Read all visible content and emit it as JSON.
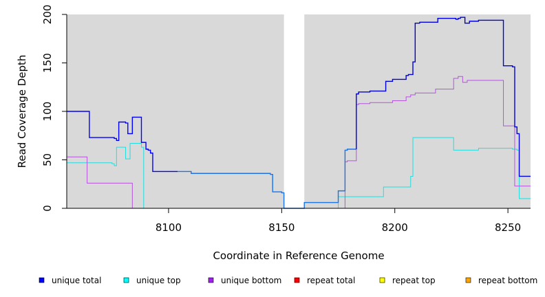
{
  "chart_data": {
    "type": "line",
    "title": "",
    "xlabel": "Coordinate in Reference Genome",
    "ylabel": "Read Coverage Depth",
    "xlim": [
      8055,
      8260
    ],
    "ylim": [
      0,
      200
    ],
    "x_ticks": [
      8100,
      8150,
      8200,
      8250
    ],
    "y_ticks": [
      0,
      50,
      100,
      150,
      200
    ],
    "grid": false,
    "background": "#d9d9d9",
    "gap_regions": [
      [
        8151,
        8160
      ]
    ],
    "legend_position": "bottom",
    "series": [
      {
        "name": "unique total",
        "color": "#0000ff",
        "points": [
          [
            8055,
            100
          ],
          [
            8065,
            100
          ],
          [
            8065,
            73
          ],
          [
            8076,
            73
          ],
          [
            8076,
            72
          ],
          [
            8077,
            72
          ],
          [
            8077,
            70
          ],
          [
            8078,
            70
          ],
          [
            8078,
            89
          ],
          [
            8081,
            89
          ],
          [
            8081,
            88
          ],
          [
            8082,
            88
          ],
          [
            8082,
            77
          ],
          [
            8084,
            77
          ],
          [
            8084,
            94
          ],
          [
            8088,
            94
          ],
          [
            8088,
            68
          ],
          [
            8090,
            68
          ],
          [
            8090,
            61
          ],
          [
            8091,
            61
          ],
          [
            8091,
            60
          ],
          [
            8092,
            60
          ],
          [
            8092,
            57
          ],
          [
            8093,
            57
          ],
          [
            8093,
            38
          ],
          [
            8104,
            38
          ],
          [
            8104,
            38
          ]
        ]
      },
      {
        "name": "unique total",
        "color": "#1a73e8",
        "points": [
          [
            8104,
            38
          ],
          [
            8110,
            38
          ],
          [
            8110,
            36
          ],
          [
            8145,
            36
          ],
          [
            8145,
            35
          ],
          [
            8146,
            35
          ],
          [
            8146,
            17
          ],
          [
            8150,
            17
          ],
          [
            8150,
            16
          ],
          [
            8151,
            16
          ],
          [
            8151,
            0
          ],
          [
            8160,
            0
          ],
          [
            8160,
            6
          ],
          [
            8175,
            6
          ],
          [
            8175,
            18
          ],
          [
            8178,
            18
          ],
          [
            8178,
            60
          ],
          [
            8179,
            60
          ],
          [
            8179,
            61
          ],
          [
            8183,
            61
          ]
        ]
      },
      {
        "name": "unique total",
        "color": "#0000dd",
        "points": [
          [
            8183,
            61
          ],
          [
            8183,
            118
          ],
          [
            8184,
            118
          ],
          [
            8184,
            120
          ],
          [
            8189,
            120
          ],
          [
            8189,
            121
          ],
          [
            8196,
            121
          ],
          [
            8196,
            131
          ],
          [
            8199,
            131
          ],
          [
            8199,
            133
          ],
          [
            8205,
            133
          ],
          [
            8205,
            137
          ],
          [
            8206,
            137
          ],
          [
            8206,
            138
          ],
          [
            8208,
            138
          ],
          [
            8208,
            151
          ],
          [
            8209,
            151
          ],
          [
            8209,
            191
          ],
          [
            8211,
            191
          ],
          [
            8211,
            192
          ],
          [
            8219,
            192
          ],
          [
            8219,
            196
          ],
          [
            8227,
            196
          ],
          [
            8227,
            195
          ],
          [
            8228,
            195
          ],
          [
            8228,
            196
          ],
          [
            8229,
            196
          ],
          [
            8229,
            197
          ],
          [
            8231,
            197
          ],
          [
            8231,
            191
          ],
          [
            8233,
            191
          ],
          [
            8233,
            193
          ],
          [
            8237,
            193
          ],
          [
            8237,
            194
          ],
          [
            8248,
            194
          ],
          [
            8248,
            147
          ],
          [
            8252,
            147
          ],
          [
            8252,
            146
          ],
          [
            8253,
            146
          ],
          [
            8253,
            84
          ],
          [
            8254,
            84
          ],
          [
            8254,
            77
          ],
          [
            8255,
            77
          ],
          [
            8255,
            33
          ],
          [
            8260,
            33
          ]
        ]
      },
      {
        "name": "unique top",
        "color": "#22dddd",
        "points": [
          [
            8055,
            47
          ],
          [
            8075,
            47
          ],
          [
            8075,
            46
          ],
          [
            8076,
            46
          ],
          [
            8076,
            44
          ],
          [
            8077,
            44
          ],
          [
            8077,
            63
          ],
          [
            8081,
            63
          ],
          [
            8081,
            51
          ],
          [
            8083,
            51
          ],
          [
            8083,
            67
          ],
          [
            8088,
            67
          ],
          [
            8088,
            63
          ],
          [
            8089,
            63
          ],
          [
            8089,
            0
          ],
          [
            8160,
            0
          ],
          [
            8160,
            0
          ],
          [
            8175,
            0
          ],
          [
            8175,
            12
          ],
          [
            8195,
            12
          ],
          [
            8195,
            22
          ],
          [
            8207,
            22
          ],
          [
            8207,
            33
          ],
          [
            8208,
            33
          ],
          [
            8208,
            73
          ],
          [
            8226,
            73
          ],
          [
            8226,
            60
          ],
          [
            8237,
            60
          ],
          [
            8237,
            62
          ],
          [
            8252,
            62
          ],
          [
            8252,
            61
          ],
          [
            8254,
            61
          ],
          [
            8254,
            60
          ],
          [
            8255,
            60
          ],
          [
            8255,
            10
          ],
          [
            8260,
            10
          ]
        ]
      },
      {
        "name": "unique bottom",
        "color": "#b452e0",
        "points": [
          [
            8055,
            53
          ],
          [
            8064,
            53
          ],
          [
            8064,
            26
          ],
          [
            8084,
            26
          ],
          [
            8084,
            0
          ],
          [
            8160,
            0
          ],
          [
            8160,
            0
          ],
          [
            8178,
            0
          ],
          [
            8178,
            48
          ],
          [
            8179,
            48
          ],
          [
            8179,
            49
          ],
          [
            8183,
            49
          ],
          [
            8183,
            107
          ],
          [
            8184,
            107
          ],
          [
            8184,
            108
          ],
          [
            8189,
            108
          ],
          [
            8189,
            109
          ],
          [
            8199,
            109
          ],
          [
            8199,
            111
          ],
          [
            8205,
            111
          ],
          [
            8205,
            115
          ],
          [
            8207,
            115
          ],
          [
            8207,
            117
          ],
          [
            8209,
            117
          ],
          [
            8209,
            119
          ],
          [
            8218,
            119
          ],
          [
            8218,
            123
          ],
          [
            8226,
            123
          ],
          [
            8226,
            134
          ],
          [
            8228,
            134
          ],
          [
            8228,
            136
          ],
          [
            8230,
            136
          ],
          [
            8230,
            130
          ],
          [
            8232,
            130
          ],
          [
            8232,
            132
          ],
          [
            8248,
            132
          ],
          [
            8248,
            85
          ],
          [
            8253,
            85
          ],
          [
            8253,
            23
          ],
          [
            8260,
            23
          ]
        ]
      },
      {
        "name": "repeat total",
        "color": "#ff0000",
        "points": [
          [
            8055,
            0
          ],
          [
            8260,
            0
          ]
        ]
      },
      {
        "name": "repeat top",
        "color": "#ffff00",
        "points": [
          [
            8055,
            0
          ],
          [
            8260,
            0
          ]
        ]
      },
      {
        "name": "repeat bottom",
        "color": "#ff9900",
        "points": [
          [
            8055,
            0
          ],
          [
            8260,
            0
          ]
        ]
      }
    ],
    "legend": [
      {
        "name": "unique total",
        "color": "#0000ff"
      },
      {
        "name": "unique top",
        "color": "#00ffff"
      },
      {
        "name": "unique bottom",
        "color": "#a020f0"
      },
      {
        "name": "repeat total",
        "color": "#ff0000"
      },
      {
        "name": "repeat top",
        "color": "#ffff00"
      },
      {
        "name": "repeat bottom",
        "color": "#ffa500"
      }
    ]
  }
}
